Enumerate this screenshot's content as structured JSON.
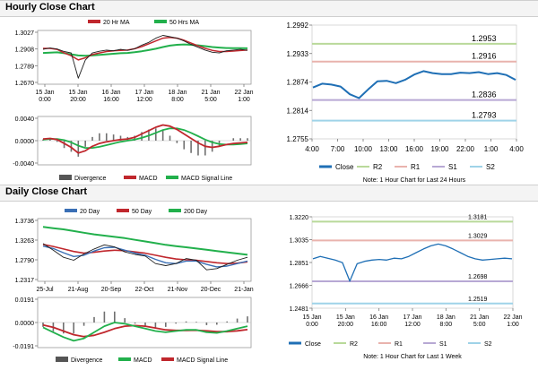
{
  "sections": {
    "hourly_title": "Hourly Close Chart",
    "daily_title": "Daily Close Chart"
  },
  "colors": {
    "price_line": "#1f1f1f",
    "ma_short": "#c0272d",
    "ma_long": "#22b04c",
    "ma_200": "#22b04c",
    "ma_20_day": "#3a6fb5",
    "close_line": "#1f6fb5",
    "r2": "#b9d99a",
    "r1": "#e9b3ad",
    "s1": "#b7a8d4",
    "s2": "#9fd3e8",
    "divergence": "#707070"
  },
  "chart_data": [
    {
      "id": "hourly-ma",
      "type": "line",
      "legend": [
        "20 Hr MA",
        "50 Hrs MA"
      ],
      "x_ticks": [
        "15 Jan\n0:00",
        "15 Jan\n20:00",
        "16 Jan\n16:00",
        "17 Jan\n12:00",
        "18 Jan\n8:00",
        "21 Jan\n5:00",
        "22 Jan\n1:00"
      ],
      "y_ticks": [
        "1.3027",
        "1.2908",
        "1.2789",
        "1.2670"
      ],
      "ylim": [
        1.267,
        1.3027
      ],
      "series": [
        {
          "name": "Close",
          "values": [
            1.2905,
            1.2915,
            1.2908,
            1.289,
            1.288,
            1.27,
            1.283,
            1.288,
            1.2892,
            1.29,
            1.2895,
            1.2905,
            1.2898,
            1.291,
            1.2935,
            1.2955,
            1.2985,
            1.3005,
            1.2995,
            1.2985,
            1.2965,
            1.294,
            1.292,
            1.29,
            1.2885,
            1.288,
            1.2895,
            1.29,
            1.2905,
            1.2898
          ]
        },
        {
          "name": "20 Hr MA",
          "values": [
            1.2912,
            1.2912,
            1.2905,
            1.288,
            1.286,
            1.283,
            1.2845,
            1.2868,
            1.288,
            1.289,
            1.2895,
            1.2898,
            1.29,
            1.291,
            1.2925,
            1.2945,
            1.2965,
            1.2985,
            1.299,
            1.2985,
            1.297,
            1.295,
            1.293,
            1.2912,
            1.2898,
            1.289,
            1.289,
            1.2893,
            1.2897,
            1.29
          ]
        },
        {
          "name": "50 Hrs MA",
          "values": [
            1.288,
            1.2882,
            1.2884,
            1.2878,
            1.287,
            1.2862,
            1.286,
            1.2862,
            1.2866,
            1.287,
            1.2874,
            1.2878,
            1.288,
            1.2885,
            1.2892,
            1.29,
            1.291,
            1.2922,
            1.2932,
            1.2938,
            1.294,
            1.2938,
            1.2934,
            1.2928,
            1.2922,
            1.2918,
            1.2915,
            1.2914,
            1.2914,
            1.2913
          ]
        }
      ]
    },
    {
      "id": "hourly-macd",
      "type": "line",
      "legend": [
        "Divergence",
        "MACD",
        "MACD Signal Line"
      ],
      "y_ticks": [
        "0.0040",
        "0.0000",
        "-0.0040"
      ],
      "ylim": [
        -0.004,
        0.004
      ],
      "series": [
        {
          "name": "MACD",
          "values": [
            0.0003,
            0.0004,
            0.0002,
            -0.0005,
            -0.0012,
            -0.0022,
            -0.0018,
            -0.001,
            -0.0005,
            -0.0002,
            0.0,
            0.0002,
            0.0003,
            0.0006,
            0.0012,
            0.0018,
            0.0024,
            0.0028,
            0.0026,
            0.002,
            0.0012,
            0.0004,
            -0.0004,
            -0.001,
            -0.0012,
            -0.001,
            -0.0007,
            -0.0005,
            -0.0004,
            -0.0003
          ]
        },
        {
          "name": "MACD Signal Line",
          "values": [
            0.0002,
            0.0003,
            0.0003,
            0.0001,
            -0.0003,
            -0.0009,
            -0.0013,
            -0.0013,
            -0.0011,
            -0.0008,
            -0.0005,
            -0.0002,
            0.0,
            0.0002,
            0.0005,
            0.0009,
            0.0014,
            0.0019,
            0.0022,
            0.0022,
            0.0019,
            0.0014,
            0.0008,
            0.0002,
            -0.0003,
            -0.0006,
            -0.0007,
            -0.0007,
            -0.0006,
            -0.0005
          ]
        }
      ]
    },
    {
      "id": "hourly-close-pivots",
      "type": "line",
      "x_ticks": [
        "4:00",
        "7:00",
        "10:00",
        "13:00",
        "16:00",
        "19:00",
        "22:00",
        "1:00",
        "4:00"
      ],
      "y_ticks": [
        "1.2992",
        "1.2933",
        "1.2874",
        "1.2814",
        "1.2755"
      ],
      "ylim": [
        1.2755,
        1.2992
      ],
      "levels": [
        {
          "name": "R2",
          "value": 1.2953
        },
        {
          "name": "R1",
          "value": 1.2916
        },
        {
          "name": "S1",
          "value": 1.2836
        },
        {
          "name": "S2",
          "value": 1.2793
        }
      ],
      "level_labels": [
        "1.2953",
        "1.2916",
        "1.2836",
        "1.2793"
      ],
      "series": [
        {
          "name": "Close",
          "values": [
            1.2862,
            1.287,
            1.2868,
            1.2864,
            1.2848,
            1.284,
            1.2858,
            1.2875,
            1.2876,
            1.2871,
            1.2878,
            1.2889,
            1.2896,
            1.2892,
            1.289,
            1.289,
            1.2893,
            1.2892,
            1.2894,
            1.289,
            1.2892,
            1.2888,
            1.2878
          ]
        }
      ],
      "legend": [
        "Close",
        "R2",
        "R1",
        "S1",
        "S2"
      ],
      "note": "Note: 1 Hour Chart for Last 24 Hours"
    },
    {
      "id": "daily-ma",
      "type": "line",
      "legend": [
        "20 Day",
        "50 Day",
        "200 Day"
      ],
      "x_ticks": [
        "25-Jul",
        "21-Aug",
        "20-Sep",
        "22-Oct",
        "21-Nov",
        "20-Dec",
        "21-Jan"
      ],
      "y_ticks": [
        "1.3736",
        "1.3263",
        "1.2790",
        "1.2317"
      ],
      "ylim": [
        1.2317,
        1.3736
      ],
      "series": [
        {
          "name": "Close",
          "values": [
            1.318,
            1.302,
            1.285,
            1.278,
            1.293,
            1.305,
            1.315,
            1.31,
            1.298,
            1.292,
            1.288,
            1.27,
            1.265,
            1.27,
            1.282,
            1.278,
            1.255,
            1.258,
            1.268,
            1.278,
            1.285
          ]
        },
        {
          "name": "20 Day",
          "values": [
            1.312,
            1.306,
            1.296,
            1.287,
            1.29,
            1.3,
            1.308,
            1.309,
            1.302,
            1.295,
            1.29,
            1.28,
            1.272,
            1.27,
            1.276,
            1.276,
            1.268,
            1.262,
            1.264,
            1.27,
            1.276
          ]
        },
        {
          "name": "50 Day",
          "values": [
            1.316,
            1.311,
            1.305,
            1.299,
            1.295,
            1.297,
            1.3,
            1.302,
            1.301,
            1.298,
            1.295,
            1.29,
            1.285,
            1.281,
            1.279,
            1.278,
            1.275,
            1.272,
            1.27,
            1.271,
            1.274
          ]
        },
        {
          "name": "200 Day",
          "values": [
            1.358,
            1.355,
            1.352,
            1.348,
            1.344,
            1.34,
            1.337,
            1.334,
            1.331,
            1.327,
            1.323,
            1.319,
            1.315,
            1.312,
            1.309,
            1.306,
            1.303,
            1.3,
            1.297,
            1.294,
            1.291
          ]
        }
      ]
    },
    {
      "id": "daily-macd",
      "type": "line",
      "legend": [
        "Divergence",
        "MACD",
        "MACD Signal Line"
      ],
      "y_ticks": [
        "0.0191",
        "0.0000",
        "-0.0191"
      ],
      "ylim": [
        -0.0191,
        0.0191
      ],
      "series": [
        {
          "name": "MACD",
          "values": [
            -0.004,
            -0.008,
            -0.012,
            -0.015,
            -0.013,
            -0.008,
            -0.003,
            0.0,
            -0.001,
            -0.003,
            -0.005,
            -0.007,
            -0.008,
            -0.007,
            -0.006,
            -0.006,
            -0.008,
            -0.0085,
            -0.007,
            -0.005,
            -0.003
          ]
        },
        {
          "name": "MACD Signal Line",
          "values": [
            -0.002,
            -0.004,
            -0.007,
            -0.01,
            -0.0115,
            -0.0105,
            -0.008,
            -0.005,
            -0.003,
            -0.0025,
            -0.003,
            -0.0045,
            -0.006,
            -0.0065,
            -0.0065,
            -0.0063,
            -0.0068,
            -0.0075,
            -0.0075,
            -0.0068,
            -0.0058
          ]
        }
      ]
    },
    {
      "id": "weekly-close-pivots",
      "type": "line",
      "x_ticks": [
        "15 Jan\n0:00",
        "15 Jan\n20:00",
        "16 Jan\n16:00",
        "17 Jan\n12:00",
        "18 Jan\n8:00",
        "21 Jan\n5:00",
        "22 Jan\n1:00"
      ],
      "y_ticks": [
        "1.3220",
        "1.3035",
        "1.2851",
        "1.2666",
        "1.2481"
      ],
      "ylim": [
        1.2481,
        1.322
      ],
      "levels": [
        {
          "name": "R2",
          "value": 1.3181
        },
        {
          "name": "R1",
          "value": 1.3029
        },
        {
          "name": "S1",
          "value": 1.2698
        },
        {
          "name": "S2",
          "value": 1.2519
        }
      ],
      "level_labels": [
        "1.3181",
        "1.3029",
        "1.2698",
        "1.2519"
      ],
      "series": [
        {
          "name": "Close",
          "values": [
            1.288,
            1.29,
            1.2885,
            1.287,
            1.285,
            1.27,
            1.284,
            1.286,
            1.287,
            1.2875,
            1.287,
            1.2885,
            1.288,
            1.29,
            1.293,
            1.296,
            1.2985,
            1.3,
            1.2985,
            1.296,
            1.293,
            1.29,
            1.288,
            1.287,
            1.2875,
            1.288,
            1.2885,
            1.288
          ]
        }
      ],
      "legend": [
        "Close",
        "R2",
        "R1",
        "S1",
        "S2"
      ],
      "note": "Note: 1 Hour Chart for Last 1 Week"
    }
  ]
}
